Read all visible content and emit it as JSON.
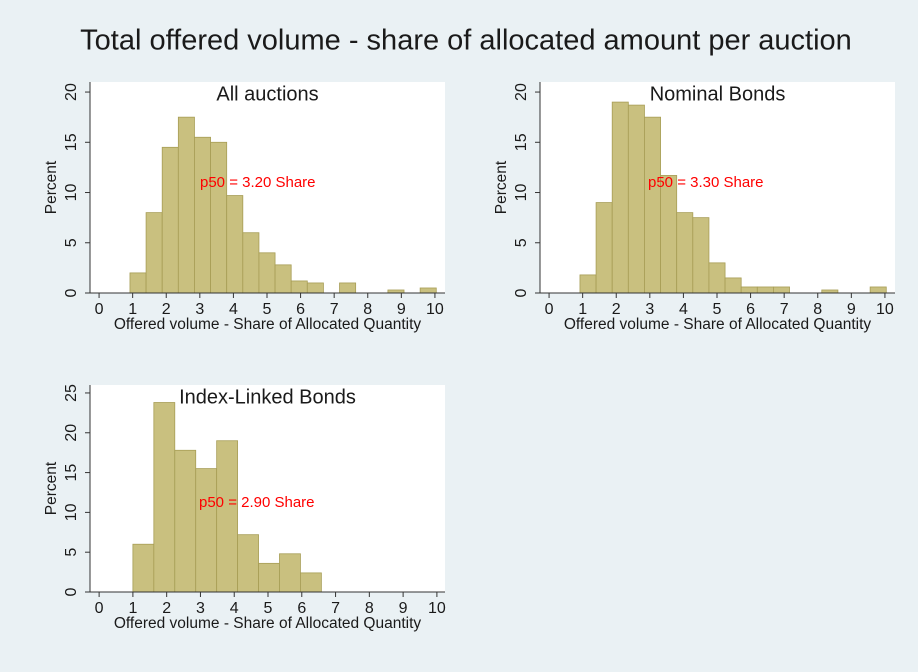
{
  "title": "Total offered volume - share of allocated amount per auction",
  "chart_data": [
    {
      "type": "histogram",
      "title": "All auctions",
      "xlabel": "Offered volume - Share of Allocated Quantity",
      "ylabel": "Percent",
      "annotation": "p50 = 3.20 Share",
      "color": "#c9c07f",
      "annotation_color": "#ff0000",
      "bins": [
        0.92,
        1.4,
        1.88,
        2.36,
        2.84,
        3.32,
        3.8,
        4.28,
        4.76,
        5.24,
        5.72,
        6.2,
        6.68,
        7.16,
        7.64,
        8.12,
        8.6,
        9.08,
        9.56,
        10.04
      ],
      "values": [
        2,
        8,
        14.5,
        17.5,
        15.5,
        15,
        9.7,
        6,
        4,
        2.8,
        1.2,
        1,
        0,
        1,
        0,
        0,
        0.3,
        0,
        0.5
      ],
      "xlim": [
        -0.27,
        10.3
      ],
      "xticks": [
        0,
        1,
        2,
        3,
        4,
        5,
        6,
        7,
        8,
        9,
        10
      ],
      "ylim": [
        0,
        21
      ],
      "yticks": [
        0,
        5,
        10,
        15,
        20
      ]
    },
    {
      "type": "histogram",
      "title": "Nominal Bonds",
      "xlabel": "Offered volume - Share of Allocated Quantity",
      "ylabel": "Percent",
      "annotation": "p50 = 3.30 Share",
      "color": "#c9c07f",
      "annotation_color": "#ff0000",
      "bins": [
        0.92,
        1.4,
        1.88,
        2.36,
        2.84,
        3.32,
        3.8,
        4.28,
        4.76,
        5.24,
        5.72,
        6.2,
        6.68,
        7.16,
        7.64,
        8.12,
        8.6,
        9.08,
        9.56,
        10.04
      ],
      "values": [
        1.8,
        9,
        19,
        18.7,
        17.5,
        11.7,
        8,
        7.5,
        3,
        1.5,
        0.6,
        0.6,
        0.6,
        0,
        0,
        0.3,
        0,
        0,
        0.6
      ],
      "xlim": [
        -0.27,
        10.3
      ],
      "xticks": [
        0,
        1,
        2,
        3,
        4,
        5,
        6,
        7,
        8,
        9,
        10
      ],
      "ylim": [
        0,
        21
      ],
      "yticks": [
        0,
        5,
        10,
        15,
        20
      ]
    },
    {
      "type": "histogram",
      "title": "Index-Linked Bonds",
      "xlabel": "Offered volume - Share of Allocated Quantity",
      "ylabel": "Percent",
      "annotation": "p50 = 2.90 Share",
      "color": "#c9c07f",
      "annotation_color": "#ff0000",
      "bins": [
        1,
        1.62,
        2.24,
        2.86,
        3.48,
        4.1,
        4.72,
        5.34,
        5.96,
        6.58
      ],
      "values": [
        6,
        23.8,
        17.8,
        15.5,
        19,
        7.2,
        3.6,
        4.8,
        2.4
      ],
      "xlim": [
        -0.27,
        10.24
      ],
      "xticks": [
        0,
        1,
        2,
        3,
        4,
        5,
        6,
        7,
        8,
        9,
        10
      ],
      "ylim": [
        0,
        26
      ],
      "yticks": [
        0,
        5,
        10,
        15,
        20,
        25
      ]
    }
  ]
}
